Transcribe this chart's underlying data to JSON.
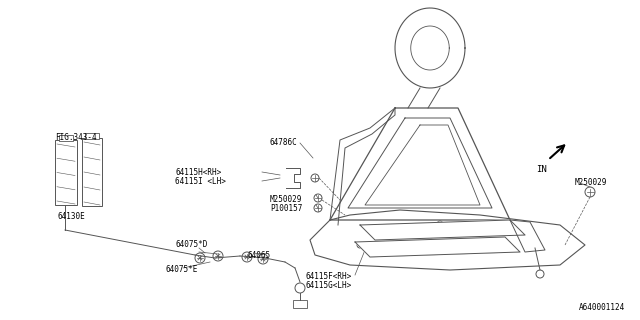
{
  "background_color": "#ffffff",
  "line_color": "#555555",
  "text_color": "#000000",
  "font_size": 5.5,
  "image_id": "A640001124",
  "labels": {
    "fig343": "FIG.343-4",
    "p64130e": "64130E",
    "p64115h": "64115H<RH>",
    "p64115i": "64115I <LH>",
    "p64786c": "64786C",
    "p64075d": "64075*D",
    "p64065": "64065",
    "p64075e": "64075*E",
    "m250029a": "M250029",
    "p100157": "P100157",
    "p64115f": "64115F<RH>",
    "p64115g": "64115G<LH>",
    "m250029b": "M250029",
    "in_label": "IN"
  }
}
